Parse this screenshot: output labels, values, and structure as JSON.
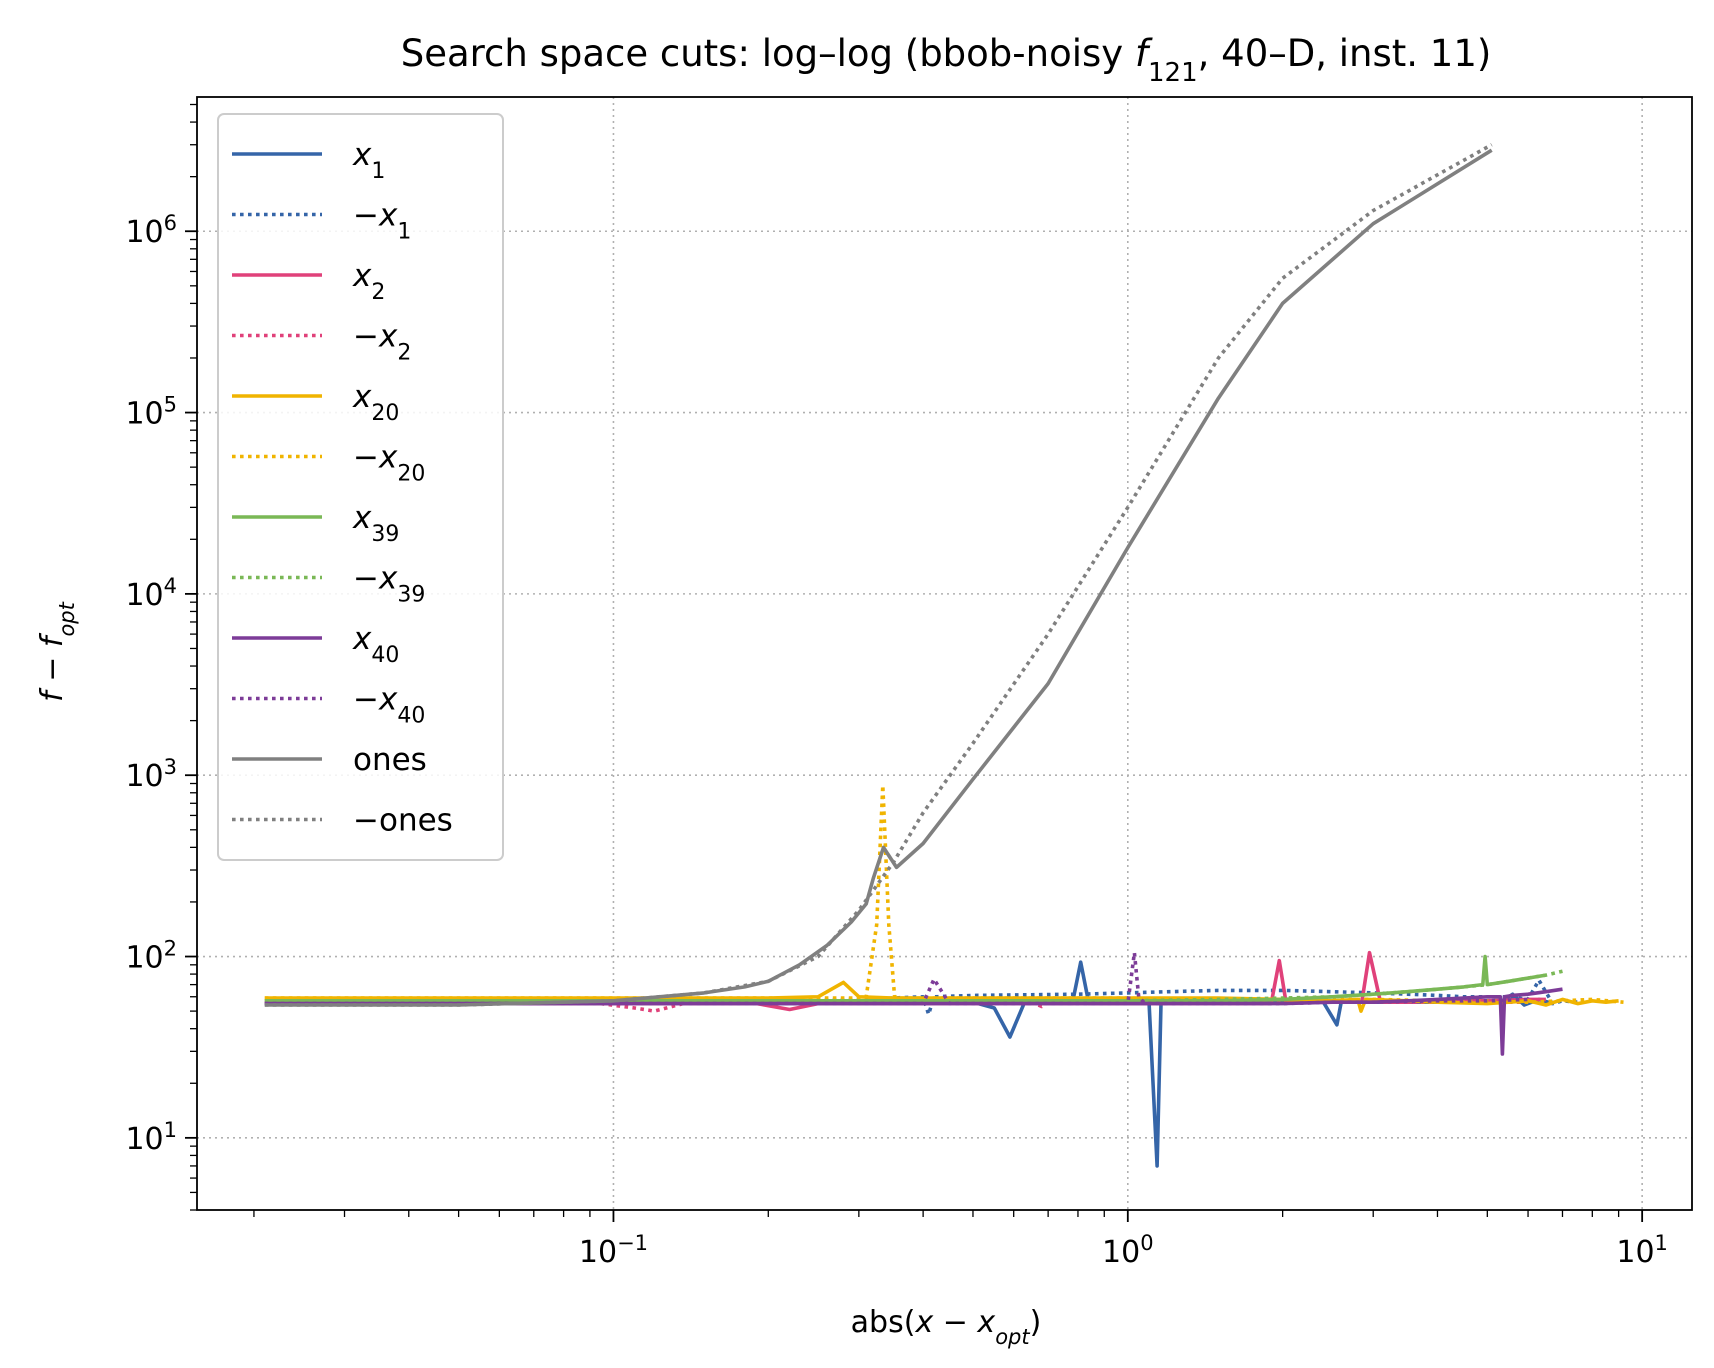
{
  "chart_data": {
    "type": "line",
    "title_parts": [
      {
        "text": "Search space cuts: log–log (bbob-noisy ",
        "italic": false,
        "sub": false
      },
      {
        "text": "f",
        "italic": true,
        "sub": false
      },
      {
        "text": "121",
        "italic": false,
        "sub": true
      },
      {
        "text": ", 40–D, inst. 11)",
        "italic": false,
        "sub": false
      }
    ],
    "xlabel_parts": [
      {
        "text": "abs(",
        "italic": false,
        "sub": false
      },
      {
        "text": "x",
        "italic": true,
        "sub": false
      },
      {
        "text": " − ",
        "italic": false,
        "sub": false
      },
      {
        "text": "x",
        "italic": true,
        "sub": false
      },
      {
        "text": "opt",
        "italic": true,
        "sub": true
      },
      {
        "text": ")",
        "italic": false,
        "sub": false
      }
    ],
    "ylabel_parts": [
      {
        "text": "f",
        "italic": true,
        "sub": false
      },
      {
        "text": " − ",
        "italic": false,
        "sub": false
      },
      {
        "text": "f",
        "italic": true,
        "sub": false
      },
      {
        "text": "opt",
        "italic": true,
        "sub": true
      }
    ],
    "x_scale": "log",
    "y_scale": "log",
    "xlim": [
      0.0155,
      12.5
    ],
    "ylim": [
      4.0,
      5500000
    ],
    "x_ticks": [
      {
        "value": 0.1,
        "base": "10",
        "exp": "−1"
      },
      {
        "value": 1,
        "base": "10",
        "exp": "0"
      },
      {
        "value": 10,
        "base": "10",
        "exp": "1"
      }
    ],
    "y_ticks": [
      {
        "value": 10,
        "base": "10",
        "exp": "1"
      },
      {
        "value": 100,
        "base": "10",
        "exp": "2"
      },
      {
        "value": 1000,
        "base": "10",
        "exp": "3"
      },
      {
        "value": 10000,
        "base": "10",
        "exp": "4"
      },
      {
        "value": 100000,
        "base": "10",
        "exp": "5"
      },
      {
        "value": 1000000,
        "base": "10",
        "exp": "6"
      }
    ],
    "grid": true,
    "legend_position": "upper-left",
    "series": [
      {
        "name_parts": [
          {
            "text": "x",
            "italic": true,
            "sub": false
          },
          {
            "text": "1",
            "italic": false,
            "sub": true
          }
        ],
        "color": "#3565a8",
        "dash": "solid",
        "x": [
          0.021,
          0.05,
          0.1,
          0.2,
          0.3,
          0.4,
          0.5,
          0.55,
          0.59,
          0.63,
          0.7,
          0.78,
          0.81,
          0.84,
          0.9,
          1.0,
          1.1,
          1.14,
          1.16,
          1.25,
          1.5,
          2.0,
          2.2,
          2.4,
          2.55,
          2.6,
          2.8,
          3.0,
          3.5,
          4.0,
          4.5,
          5.0,
          5.3,
          5.6,
          5.9,
          6.3,
          6.7
        ],
        "y": [
          55,
          55,
          55,
          55,
          55,
          55,
          56,
          52,
          36,
          56,
          55,
          55,
          93,
          55,
          55,
          55,
          55,
          7,
          55,
          56,
          56,
          56,
          56,
          56,
          42,
          56,
          56,
          56,
          56,
          56,
          56,
          56,
          56,
          62,
          54,
          58,
          55
        ]
      },
      {
        "name_parts": [
          {
            "text": "−",
            "italic": false,
            "sub": false
          },
          {
            "text": "x",
            "italic": true,
            "sub": false
          },
          {
            "text": "1",
            "italic": false,
            "sub": true
          }
        ],
        "color": "#3565a8",
        "dash": "dotted",
        "x": [
          0.021,
          0.1,
          0.2,
          0.3,
          0.4,
          0.41,
          0.42,
          0.5,
          0.8,
          1.0,
          1.2,
          1.5,
          2.0,
          2.5,
          3.0,
          3.5,
          4.0,
          4.5,
          5.0,
          5.5,
          6.0,
          6.3,
          6.7,
          7.0,
          7.5
        ],
        "y": [
          55,
          56,
          57,
          58,
          60,
          48,
          60,
          61,
          62,
          63,
          64,
          65,
          65,
          64,
          63,
          62,
          61,
          60,
          60,
          60,
          58,
          74,
          55,
          57,
          56
        ]
      },
      {
        "name_parts": [
          {
            "text": "x",
            "italic": true,
            "sub": false
          },
          {
            "text": "2",
            "italic": false,
            "sub": true
          }
        ],
        "color": "#e0417a",
        "dash": "solid",
        "x": [
          0.021,
          0.1,
          0.19,
          0.22,
          0.25,
          0.3,
          0.5,
          1.0,
          1.5,
          1.9,
          1.97,
          2.03,
          2.3,
          2.7,
          2.85,
          2.95,
          3.1,
          3.5,
          4.0,
          5.0,
          6.0,
          6.5
        ],
        "y": [
          55,
          55,
          55,
          51,
          55,
          55,
          55,
          55,
          55,
          55,
          95,
          56,
          56,
          56,
          56,
          105,
          56,
          56,
          57,
          57,
          58,
          58
        ]
      },
      {
        "name_parts": [
          {
            "text": "−",
            "italic": false,
            "sub": false
          },
          {
            "text": "x",
            "italic": true,
            "sub": false
          },
          {
            "text": "2",
            "italic": false,
            "sub": true
          }
        ],
        "color": "#e0417a",
        "dash": "dotted",
        "x": [
          0.021,
          0.09,
          0.11,
          0.12,
          0.14,
          0.2,
          0.3,
          0.5,
          0.65,
          0.68,
          0.7,
          1.0,
          1.5,
          2.0,
          2.5,
          3.0,
          3.5,
          4.0,
          5.0,
          6.0
        ],
        "y": [
          56,
          56,
          52,
          50,
          56,
          56,
          56,
          56,
          56,
          53,
          56,
          56,
          56,
          56,
          56,
          56,
          56,
          56,
          56,
          56
        ]
      },
      {
        "name_parts": [
          {
            "text": "x",
            "italic": true,
            "sub": false
          },
          {
            "text": "20",
            "italic": false,
            "sub": true
          }
        ],
        "color": "#f0b400",
        "dash": "solid",
        "x": [
          0.021,
          0.1,
          0.2,
          0.25,
          0.28,
          0.3,
          0.35,
          0.5,
          1.0,
          1.5,
          2.0,
          2.5,
          2.8,
          2.84,
          2.9,
          3.5,
          4.0,
          5.0,
          5.5,
          6.0,
          6.5,
          7.0,
          7.5,
          8.0,
          8.5,
          9.0
        ],
        "y": [
          59,
          59,
          59,
          60,
          72,
          60,
          59,
          59,
          59,
          59,
          58,
          57,
          58,
          50,
          58,
          57,
          56,
          55,
          56,
          57,
          54,
          58,
          55,
          57,
          56,
          57
        ]
      },
      {
        "name_parts": [
          {
            "text": "−",
            "italic": false,
            "sub": false
          },
          {
            "text": "x",
            "italic": true,
            "sub": false
          },
          {
            "text": "20",
            "italic": false,
            "sub": true
          }
        ],
        "color": "#f0b400",
        "dash": "dotted",
        "x": [
          0.021,
          0.1,
          0.2,
          0.3,
          0.31,
          0.325,
          0.334,
          0.343,
          0.352,
          0.36,
          0.5,
          1.0,
          1.5,
          2.0,
          3.0,
          4.0,
          5.0,
          6.0,
          7.0,
          8.0,
          9.2
        ],
        "y": [
          59,
          59,
          59,
          59,
          60,
          150,
          880,
          150,
          60,
          59,
          59,
          59,
          58,
          58,
          58,
          57,
          57,
          56,
          57,
          58,
          56
        ]
      },
      {
        "name_parts": [
          {
            "text": "x",
            "italic": true,
            "sub": false
          },
          {
            "text": "39",
            "italic": false,
            "sub": true
          }
        ],
        "color": "#7ab856",
        "dash": "solid",
        "x": [
          0.021,
          0.1,
          0.2,
          0.5,
          1.0,
          1.5,
          2.0,
          2.5,
          3.0,
          3.5,
          4.0,
          4.5,
          4.9,
          4.95,
          5.0,
          5.5,
          6.0,
          6.5
        ],
        "y": [
          57,
          57,
          57,
          57,
          57,
          57,
          58,
          60,
          62,
          64,
          66,
          68,
          70,
          100,
          70,
          73,
          76,
          79
        ]
      },
      {
        "name_parts": [
          {
            "text": "−",
            "italic": false,
            "sub": false
          },
          {
            "text": "x",
            "italic": true,
            "sub": false
          },
          {
            "text": "39",
            "italic": false,
            "sub": true
          }
        ],
        "color": "#7ab856",
        "dash": "dotted",
        "x": [
          0.021,
          0.1,
          0.2,
          0.5,
          1.0,
          1.5,
          2.0,
          2.5,
          3.0,
          3.5,
          4.0,
          4.5,
          5.0,
          5.5,
          6.0,
          6.5,
          7.0
        ],
        "y": [
          57,
          57,
          57,
          57,
          57,
          58,
          59,
          60,
          62,
          64,
          66,
          68,
          70,
          73,
          76,
          79,
          83
        ]
      },
      {
        "name_parts": [
          {
            "text": "x",
            "italic": true,
            "sub": false
          },
          {
            "text": "40",
            "italic": false,
            "sub": true
          }
        ],
        "color": "#7d3c98",
        "dash": "solid",
        "x": [
          0.021,
          0.1,
          0.2,
          0.5,
          1.0,
          1.5,
          2.0,
          2.5,
          3.0,
          3.5,
          4.0,
          4.5,
          5.0,
          5.3,
          5.35,
          5.4,
          5.6,
          6.0,
          6.5,
          7.0
        ],
        "y": [
          55,
          55,
          55,
          55,
          55,
          55,
          55,
          56,
          56,
          57,
          58,
          59,
          60,
          60,
          29,
          60,
          61,
          62,
          64,
          66
        ]
      },
      {
        "name_parts": [
          {
            "text": "−",
            "italic": false,
            "sub": false
          },
          {
            "text": "x",
            "italic": true,
            "sub": false
          },
          {
            "text": "40",
            "italic": false,
            "sub": true
          }
        ],
        "color": "#7d3c98",
        "dash": "dotted",
        "x": [
          0.021,
          0.1,
          0.2,
          0.4,
          0.42,
          0.45,
          0.5,
          1.0,
          1.03,
          1.05,
          1.08,
          1.5,
          2.0,
          2.5,
          3.0,
          4.0,
          5.0,
          6.0
        ],
        "y": [
          55,
          55,
          55,
          55,
          75,
          55,
          55,
          55,
          105,
          60,
          55,
          55,
          55,
          56,
          56,
          57,
          57,
          58
        ]
      },
      {
        "name_parts": [
          {
            "text": "ones",
            "italic": false,
            "sub": false
          }
        ],
        "color": "#808080",
        "dash": "solid",
        "x": [
          0.021,
          0.05,
          0.1,
          0.15,
          0.18,
          0.2,
          0.23,
          0.26,
          0.29,
          0.31,
          0.32,
          0.335,
          0.355,
          0.4,
          0.5,
          0.7,
          1.0,
          1.5,
          2.0,
          3.0,
          5.1
        ],
        "y": [
          54,
          54,
          57,
          63,
          68,
          73,
          90,
          115,
          155,
          195,
          270,
          400,
          310,
          420,
          950,
          3200,
          18000,
          120000,
          400000,
          1100000,
          2800000
        ]
      },
      {
        "name_parts": [
          {
            "text": "−ones",
            "italic": false,
            "sub": false
          }
        ],
        "color": "#808080",
        "dash": "dotted",
        "x": [
          0.021,
          0.05,
          0.1,
          0.15,
          0.2,
          0.25,
          0.3,
          0.35,
          0.4,
          0.5,
          0.7,
          1.0,
          1.5,
          2.0,
          3.0,
          5.1
        ],
        "y": [
          54,
          54,
          57,
          63,
          73,
          100,
          180,
          330,
          620,
          1500,
          6000,
          30000,
          200000,
          550000,
          1300000,
          3000000
        ]
      }
    ]
  }
}
